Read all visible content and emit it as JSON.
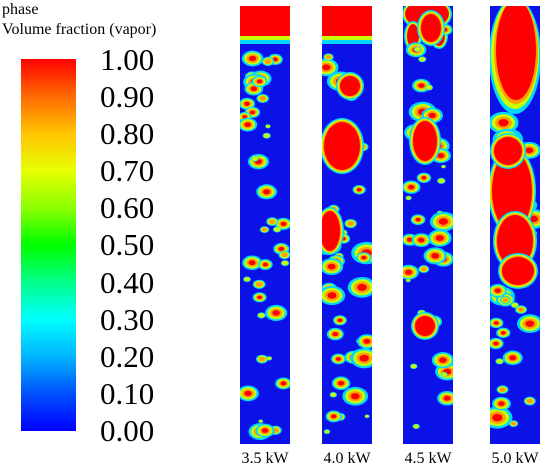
{
  "legend": {
    "title_line1": "phase",
    "title_line2": "Volume fraction (vapor)",
    "ticks": [
      "1.00",
      "0.90",
      "0.80",
      "0.70",
      "0.60",
      "0.50",
      "0.40",
      "0.30",
      "0.20",
      "0.10",
      "0.00"
    ],
    "colormap": [
      "#ff0000",
      "#ff6a00",
      "#ffc400",
      "#e8ff00",
      "#8cff00",
      "#00ff00",
      "#00ff8a",
      "#00ffff",
      "#00b4ff",
      "#0050ff",
      "#0000ff"
    ]
  },
  "columns": [
    {
      "label": "3.5 kW",
      "heat_power_kw": 3.5
    },
    {
      "label": "4.0 kW",
      "heat_power_kw": 4.0
    },
    {
      "label": "4.5 kW",
      "heat_power_kw": 4.5
    },
    {
      "label": "5.0 kW",
      "heat_power_kw": 5.0
    }
  ],
  "colors": {
    "liquid": "#0a12e8",
    "interface_low": "#00d8ff",
    "interface_mid": "#c8ff00",
    "interface_high": "#ffa000",
    "vapor": "#ff0000"
  }
}
